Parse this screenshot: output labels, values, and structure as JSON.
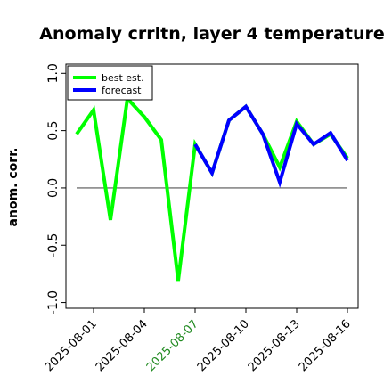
{
  "chart_data": {
    "type": "line",
    "title": "Anomaly crrltn, layer 4 temperature",
    "xlabel": "",
    "ylabel": "anom. corr.",
    "x": [
      "2025-07-31",
      "2025-08-01",
      "2025-08-02",
      "2025-08-03",
      "2025-08-04",
      "2025-08-05",
      "2025-08-06",
      "2025-08-07",
      "2025-08-08",
      "2025-08-09",
      "2025-08-10",
      "2025-08-11",
      "2025-08-12",
      "2025-08-13",
      "2025-08-14",
      "2025-08-15",
      "2025-08-16"
    ],
    "xticks": [
      "2025-08-01",
      "2025-08-04",
      "2025-08-07",
      "2025-08-10",
      "2025-08-13",
      "2025-08-16"
    ],
    "xtick_colors": [
      "#000000",
      "#000000",
      "#228b22",
      "#000000",
      "#000000",
      "#000000"
    ],
    "yticks": [
      "-1.0",
      "-0.5",
      "0.0",
      "0.5",
      "1.0"
    ],
    "ylim": [
      -1.05,
      1.08
    ],
    "series": [
      {
        "name": "best est.",
        "color": "#00ff00",
        "values": [
          0.47,
          0.68,
          -0.28,
          0.78,
          0.62,
          0.42,
          -0.81,
          0.38,
          0.13,
          0.59,
          0.71,
          0.47,
          0.18,
          0.58,
          0.38,
          0.47,
          0.26
        ]
      },
      {
        "name": "forecast",
        "color": "#0000ff",
        "values": [
          null,
          null,
          null,
          null,
          null,
          null,
          null,
          0.38,
          0.13,
          0.59,
          0.71,
          0.47,
          0.05,
          0.56,
          0.38,
          0.48,
          0.24
        ]
      }
    ],
    "hline": 0.0,
    "legend_position": "top-left",
    "grid": false
  }
}
